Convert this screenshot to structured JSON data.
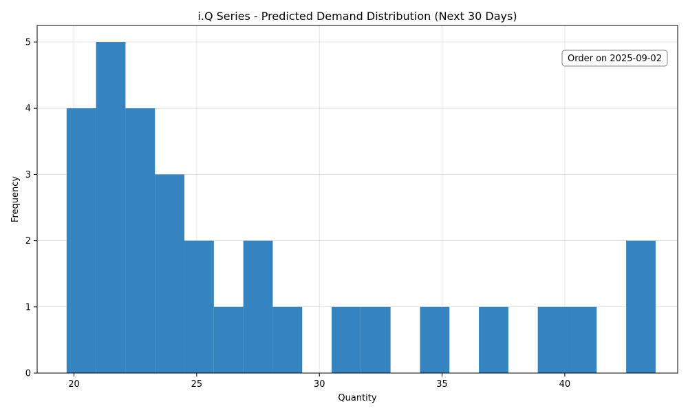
{
  "chart_data": {
    "type": "bar",
    "title": "i.Q Series - Predicted Demand Distribution (Next 30 Days)",
    "xlabel": "Quantity",
    "ylabel": "Frequency",
    "xlim": [
      18.5,
      44.6
    ],
    "ylim": [
      0,
      5.25
    ],
    "xticks": [
      20,
      25,
      30,
      35,
      40
    ],
    "yticks": [
      0,
      1,
      2,
      3,
      4,
      5
    ],
    "grid": true,
    "bar_color": "#3584bf",
    "bins": [
      {
        "x0": 19.7,
        "x1": 20.9,
        "count": 4
      },
      {
        "x0": 20.9,
        "x1": 22.1,
        "count": 5
      },
      {
        "x0": 22.1,
        "x1": 23.3,
        "count": 4
      },
      {
        "x0": 23.3,
        "x1": 24.5,
        "count": 3
      },
      {
        "x0": 24.5,
        "x1": 25.7,
        "count": 2
      },
      {
        "x0": 25.7,
        "x1": 26.9,
        "count": 1
      },
      {
        "x0": 26.9,
        "x1": 28.1,
        "count": 2
      },
      {
        "x0": 28.1,
        "x1": 29.3,
        "count": 1
      },
      {
        "x0": 30.5,
        "x1": 31.7,
        "count": 1
      },
      {
        "x0": 31.7,
        "x1": 32.9,
        "count": 1
      },
      {
        "x0": 34.1,
        "x1": 35.3,
        "count": 1
      },
      {
        "x0": 36.5,
        "x1": 37.7,
        "count": 1
      },
      {
        "x0": 38.9,
        "x1": 40.1,
        "count": 1
      },
      {
        "x0": 40.1,
        "x1": 41.3,
        "count": 1
      },
      {
        "x0": 42.5,
        "x1": 43.7,
        "count": 2
      }
    ],
    "annotation": {
      "text": "Order on 2025-09-02",
      "position": "top-right"
    }
  }
}
